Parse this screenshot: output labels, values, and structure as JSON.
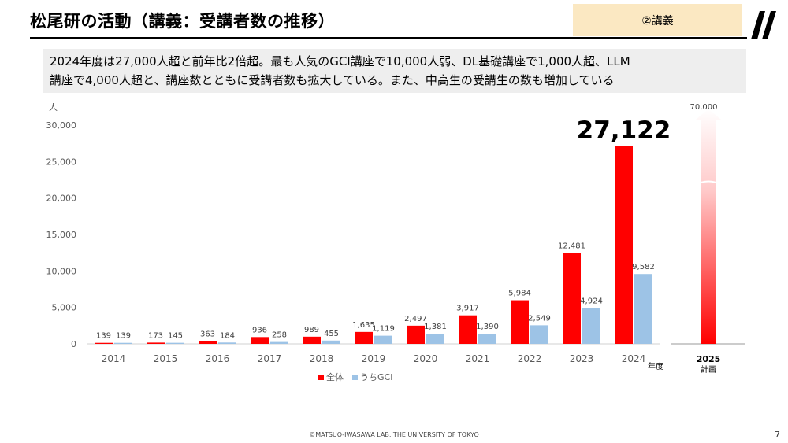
{
  "slide": {
    "title": "松尾研の活動（講義：受講者数の推移）",
    "section_tag": "②講義",
    "summary_line1": "2024年度は27,000人超と前年比2倍超。最も人気のGCI講座で10,000人弱、DL基礎講座で1,000人超、LLM",
    "summary_line2": "講座で4,000人超と、講座数とともに受講者数も拡大している。また、中高生の受講生の数も増加している",
    "footer": "©MATSUO-IWASAWA LAB, THE UNIVERSITY OF TOKYO",
    "page_number": "7"
  },
  "colors": {
    "total": "#ff0000",
    "gci": "#9dc3e6",
    "axis_text": "#595959",
    "title_rule": "#000000",
    "section_tag_bg": "#fbe8c2",
    "summary_bg": "#eeeeee"
  },
  "chart_data": {
    "type": "bar",
    "categories": [
      "2014",
      "2015",
      "2016",
      "2017",
      "2018",
      "2019",
      "2020",
      "2021",
      "2022",
      "2023",
      "2024"
    ],
    "series": [
      {
        "name": "全体",
        "values": [
          139,
          173,
          363,
          936,
          989,
          1635,
          2497,
          3917,
          5984,
          12481,
          27122
        ]
      },
      {
        "name": "うちGCI",
        "values": [
          139,
          145,
          184,
          258,
          455,
          1119,
          1381,
          1390,
          2549,
          4924,
          9582
        ]
      }
    ],
    "data_labels_total": [
      "139",
      "173",
      "363",
      "936",
      "989",
      "1,635",
      "2,497",
      "3,917",
      "5,984",
      "12,481",
      ""
    ],
    "data_labels_gci": [
      "139",
      "145",
      "184",
      "258",
      "455",
      "1,119",
      "1,381",
      "1,390",
      "2,549",
      "4,924",
      "9,582"
    ],
    "highlight_label": "27,122",
    "yticks": [
      0,
      5000,
      10000,
      15000,
      20000,
      25000,
      30000
    ],
    "ytick_labels": [
      "0",
      "5,000",
      "10,000",
      "15,000",
      "20,000",
      "25,000",
      "30,000"
    ],
    "ylim": [
      0,
      30000
    ],
    "ylabel": "人",
    "xlabel": "年度",
    "legend": "bottom-center",
    "plan": {
      "year_label": "2025",
      "sub_label": "計画",
      "value_label": "70,000",
      "value": 70000
    }
  }
}
